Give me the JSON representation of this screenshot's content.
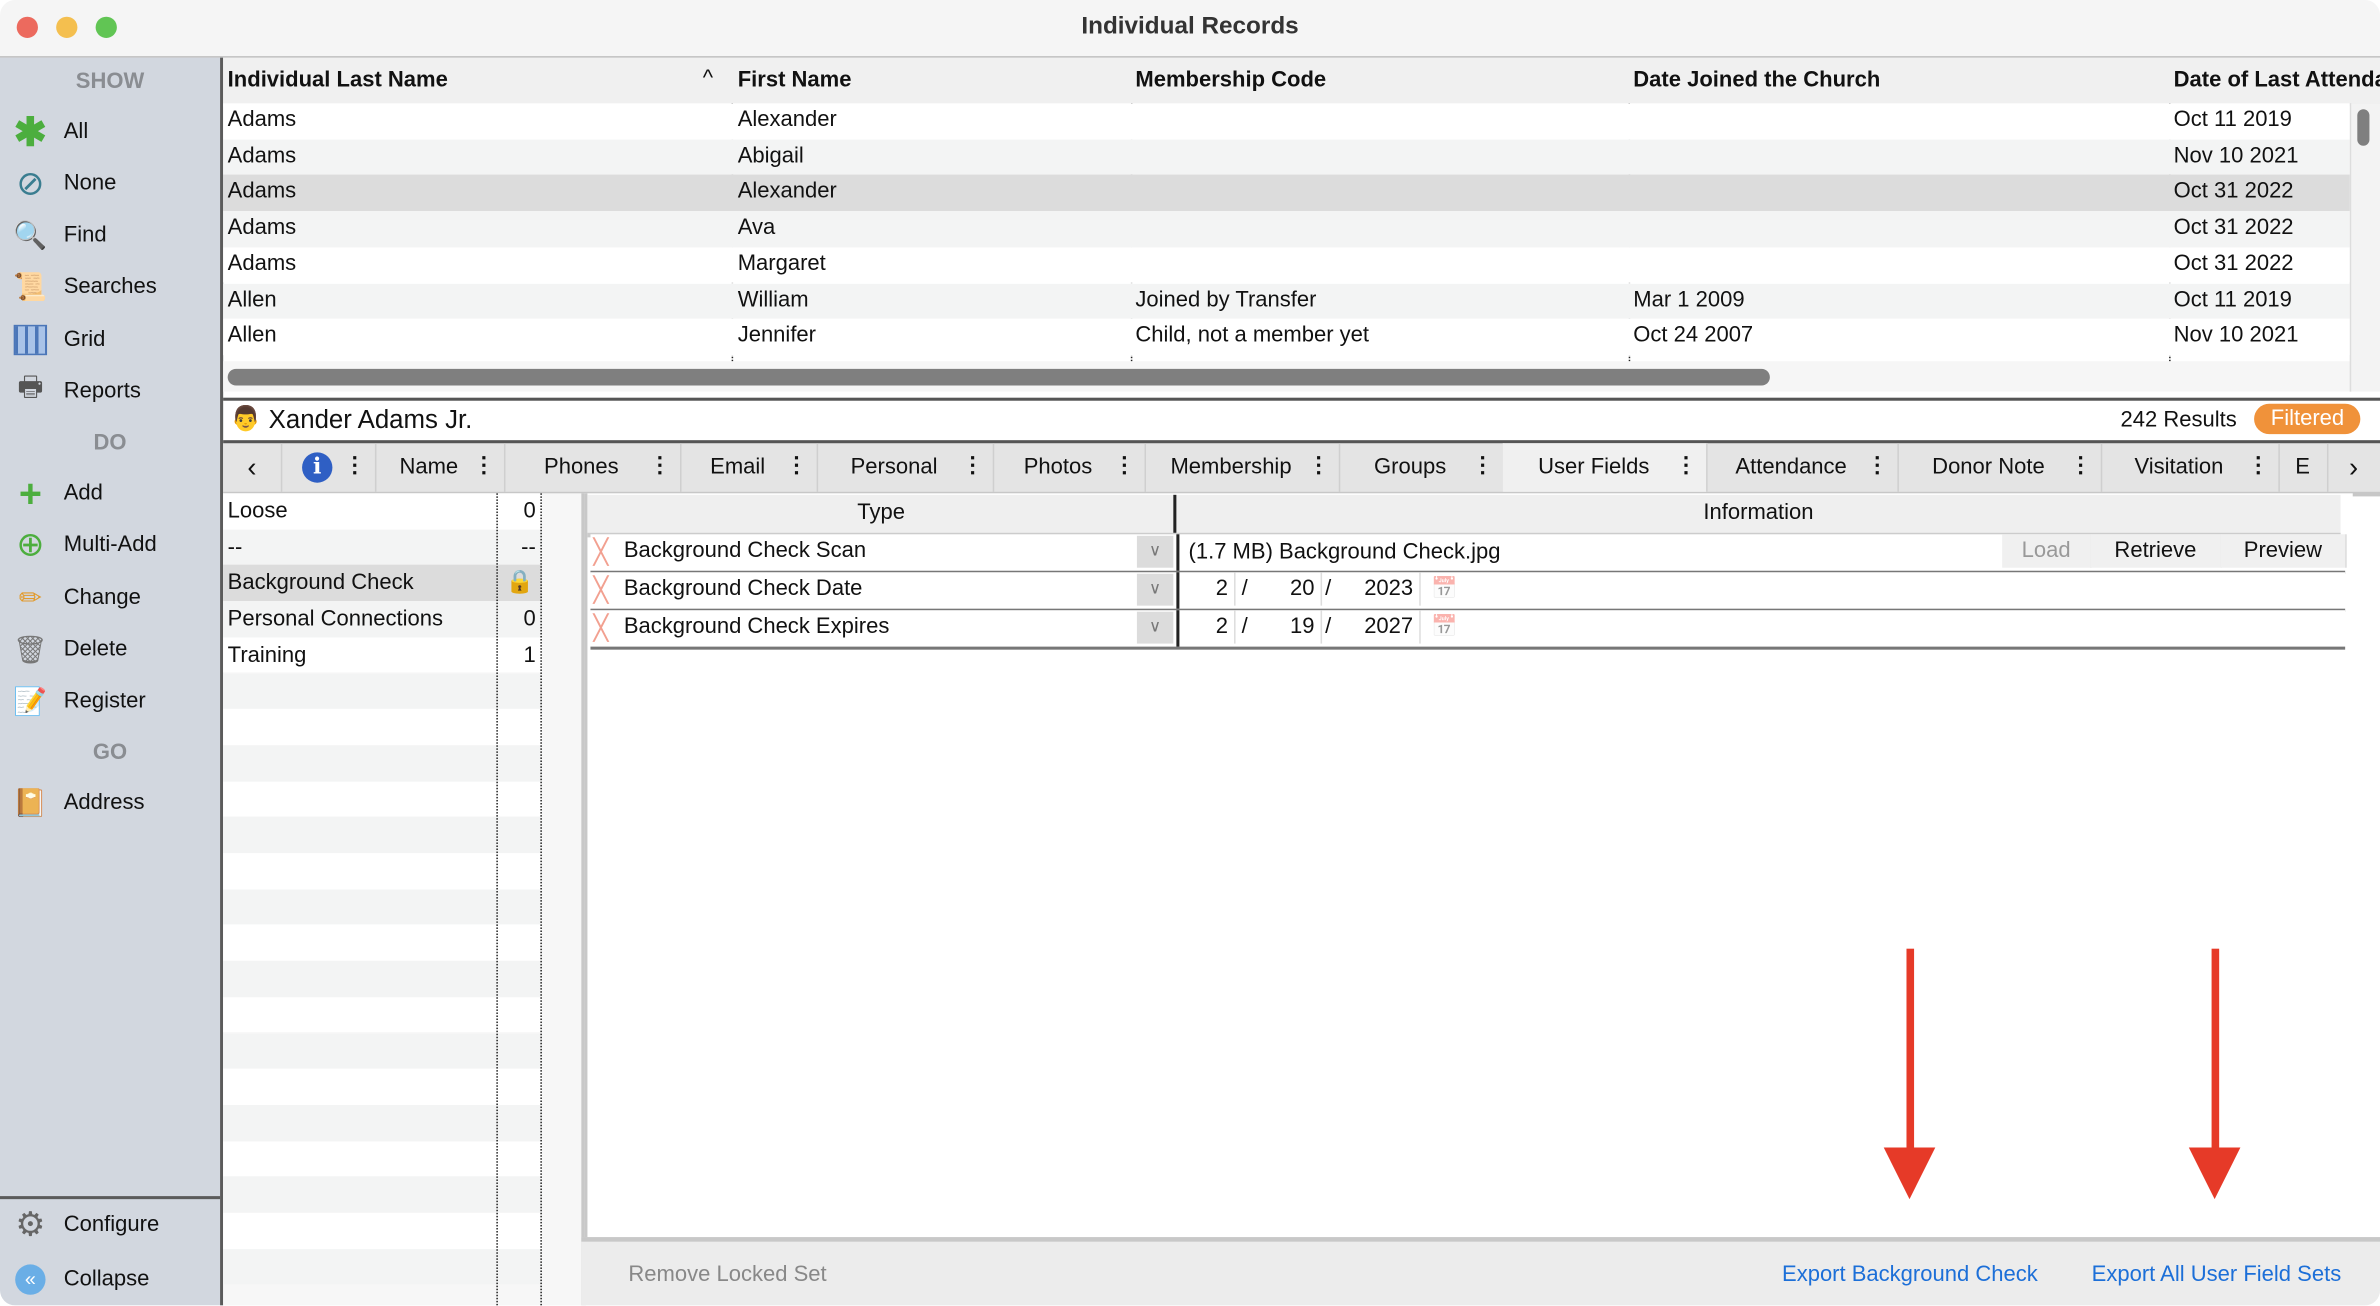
{
  "window": {
    "title": "Individual Records"
  },
  "sidebar": {
    "sections": {
      "show": "SHOW",
      "do": "DO",
      "go": "GO"
    },
    "show_items": [
      {
        "label": "All",
        "icon": "asterisk-icon"
      },
      {
        "label": "None",
        "icon": "no-entry-icon"
      },
      {
        "label": "Find",
        "icon": "magnifier-icon"
      },
      {
        "label": "Searches",
        "icon": "scroll-search-icon"
      },
      {
        "label": "Grid",
        "icon": "grid-icon"
      },
      {
        "label": "Reports",
        "icon": "printer-icon"
      }
    ],
    "do_items": [
      {
        "label": "Add",
        "icon": "plus-icon"
      },
      {
        "label": "Multi-Add",
        "icon": "multi-add-icon"
      },
      {
        "label": "Change",
        "icon": "pencil-icon"
      },
      {
        "label": "Delete",
        "icon": "trash-icon"
      },
      {
        "label": "Register",
        "icon": "register-icon"
      }
    ],
    "go_items": [
      {
        "label": "Address",
        "icon": "address-book-icon"
      }
    ],
    "bottom_items": [
      {
        "label": "Configure",
        "icon": "gear-icon"
      },
      {
        "label": "Collapse",
        "icon": "collapse-icon"
      }
    ]
  },
  "table": {
    "columns": [
      "Individual Last Name",
      "First Name",
      "Membership Code",
      "Date Joined the Church",
      "Date of Last Attendance"
    ],
    "sort_indicator": "^",
    "rows": [
      [
        "Adams",
        "Alexander",
        "",
        "",
        "Oct 11 2019"
      ],
      [
        "Adams",
        "Abigail",
        "",
        "",
        "Nov 10 2021"
      ],
      [
        "Adams",
        "Alexander",
        "",
        "",
        "Oct 31 2022"
      ],
      [
        "Adams",
        "Ava",
        "",
        "",
        "Oct 31 2022"
      ],
      [
        "Adams",
        "Margaret",
        "",
        "",
        "Oct 31 2022"
      ],
      [
        "Allen",
        "William",
        "Joined by Transfer",
        "Mar 1 2009",
        "Oct 11 2019"
      ],
      [
        "Allen",
        "Jennifer",
        "Child, not a member yet",
        "Oct 24 2007",
        "Nov 10 2021"
      ]
    ],
    "selected_row": 2
  },
  "person": {
    "name": "Xander Adams Jr.",
    "results": "242 Results",
    "filter_badge": "Filtered"
  },
  "tabs": {
    "prev": "‹",
    "next": "›",
    "items": [
      "Name",
      "Phones",
      "Email",
      "Personal",
      "Photos",
      "Membership",
      "Groups",
      "User Fields",
      "Attendance",
      "Donor Note",
      "Visitation",
      "E"
    ],
    "active": "User Fields"
  },
  "field_sets": [
    {
      "name": "Loose",
      "count": "0"
    },
    {
      "name": "--",
      "count": "--"
    },
    {
      "name": "Background Check",
      "count": "",
      "locked": true
    },
    {
      "name": "Personal Connections",
      "count": "0"
    },
    {
      "name": "Training",
      "count": "1"
    }
  ],
  "fields": {
    "headers": {
      "type": "Type",
      "info": "Information"
    },
    "rows": [
      {
        "type": "Background Check Scan",
        "info": "(1.7 MB) Background Check.jpg",
        "buttons": [
          "Load",
          "Retrieve",
          "Preview"
        ]
      },
      {
        "type": "Background Check Date",
        "month": "2",
        "day": "20",
        "year": "2023"
      },
      {
        "type": "Background Check Expires",
        "month": "2",
        "day": "19",
        "year": "2027"
      }
    ],
    "date_sep": "/"
  },
  "bottom": {
    "remove": "Remove Locked Set",
    "export_one": "Export Background Check",
    "export_all": "Export All User Field Sets"
  },
  "colors": {
    "accent_orange": "#f0923a",
    "link_blue": "#1c6fd8",
    "arrow_red": "#e63a28",
    "sidebar_bg": "#d2d7df"
  }
}
